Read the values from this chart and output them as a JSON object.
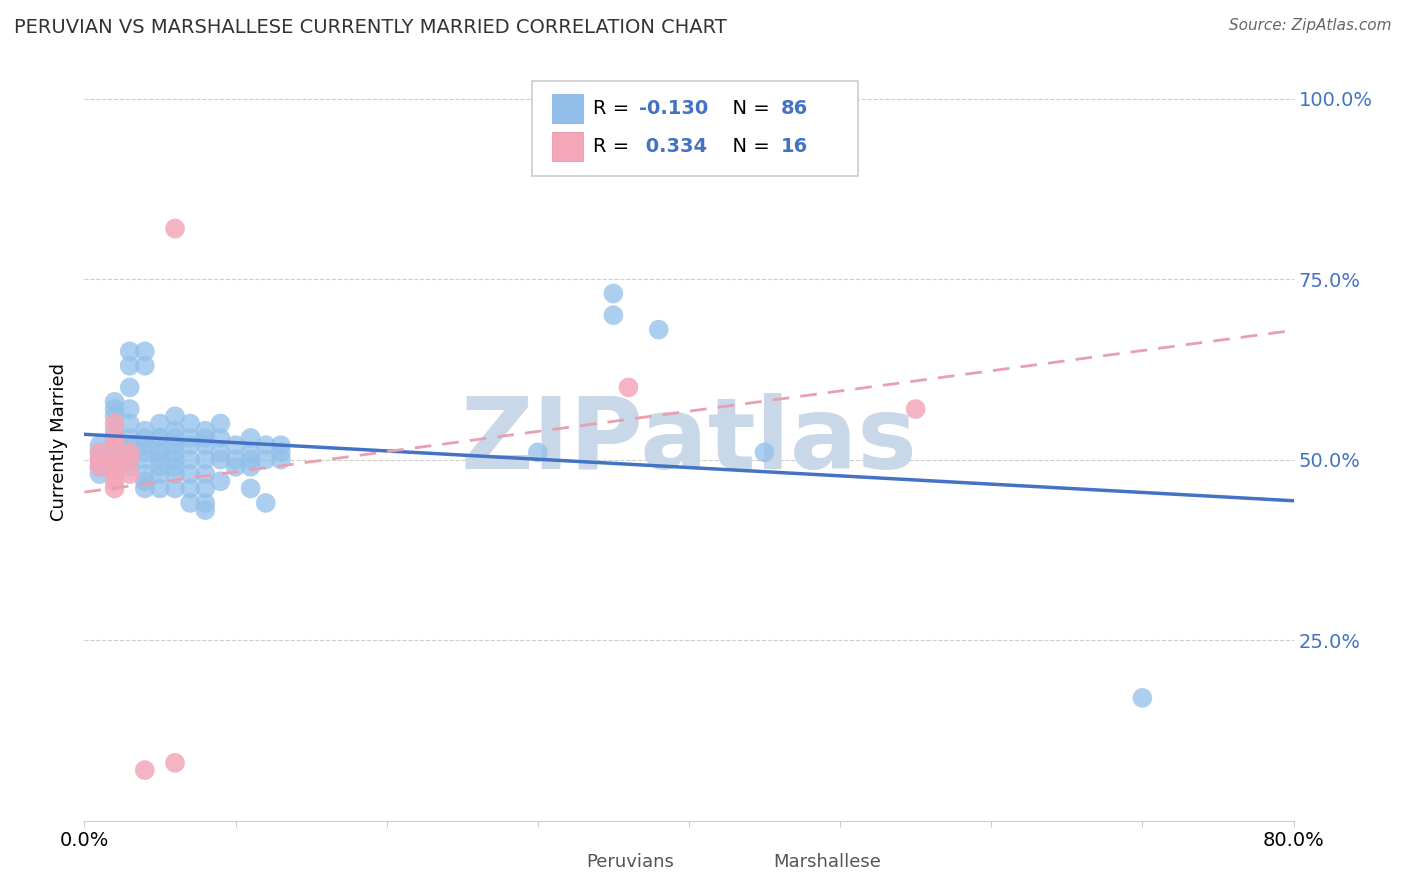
{
  "title": "PERUVIAN VS MARSHALLESE CURRENTLY MARRIED CORRELATION CHART",
  "source_text": "Source: ZipAtlas.com",
  "ylabel": "Currently Married",
  "xlim": [
    0.0,
    0.8
  ],
  "ylim": [
    0.0,
    1.05
  ],
  "yticks": [
    0.25,
    0.5,
    0.75,
    1.0
  ],
  "ytick_labels": [
    "25.0%",
    "50.0%",
    "75.0%",
    "100.0%"
  ],
  "xticks": [
    0.0,
    0.1,
    0.2,
    0.3,
    0.4,
    0.5,
    0.6,
    0.7,
    0.8
  ],
  "xtick_labels": [
    "0.0%",
    "",
    "",
    "",
    "",
    "",
    "",
    "",
    "80.0%"
  ],
  "peruvian_color": "#92bfea",
  "marshallese_color": "#f4a7b9",
  "peruvian_line_color": "#4472c4",
  "marshallese_line_color": "#e8a0b0",
  "legend_R_color": "#4472c4",
  "watermark": "ZIPatlas",
  "watermark_color": "#c8d8e8",
  "peru_trend": [
    -0.115,
    0.535
  ],
  "marsh_trend": [
    0.28,
    0.455
  ],
  "peruvian_dots": [
    [
      0.01,
      0.51
    ],
    [
      0.01,
      0.5
    ],
    [
      0.01,
      0.49
    ],
    [
      0.01,
      0.48
    ],
    [
      0.01,
      0.52
    ],
    [
      0.02,
      0.53
    ],
    [
      0.02,
      0.51
    ],
    [
      0.02,
      0.5
    ],
    [
      0.02,
      0.49
    ],
    [
      0.02,
      0.48
    ],
    [
      0.02,
      0.52
    ],
    [
      0.02,
      0.54
    ],
    [
      0.02,
      0.56
    ],
    [
      0.02,
      0.57
    ],
    [
      0.02,
      0.58
    ],
    [
      0.03,
      0.53
    ],
    [
      0.03,
      0.52
    ],
    [
      0.03,
      0.51
    ],
    [
      0.03,
      0.5
    ],
    [
      0.03,
      0.49
    ],
    [
      0.03,
      0.55
    ],
    [
      0.03,
      0.57
    ],
    [
      0.03,
      0.6
    ],
    [
      0.03,
      0.63
    ],
    [
      0.03,
      0.65
    ],
    [
      0.04,
      0.54
    ],
    [
      0.04,
      0.53
    ],
    [
      0.04,
      0.52
    ],
    [
      0.04,
      0.51
    ],
    [
      0.04,
      0.5
    ],
    [
      0.04,
      0.48
    ],
    [
      0.04,
      0.47
    ],
    [
      0.04,
      0.46
    ],
    [
      0.04,
      0.63
    ],
    [
      0.04,
      0.65
    ],
    [
      0.05,
      0.55
    ],
    [
      0.05,
      0.53
    ],
    [
      0.05,
      0.51
    ],
    [
      0.05,
      0.5
    ],
    [
      0.05,
      0.49
    ],
    [
      0.05,
      0.48
    ],
    [
      0.05,
      0.46
    ],
    [
      0.05,
      0.53
    ],
    [
      0.05,
      0.51
    ],
    [
      0.06,
      0.56
    ],
    [
      0.06,
      0.54
    ],
    [
      0.06,
      0.53
    ],
    [
      0.06,
      0.52
    ],
    [
      0.06,
      0.51
    ],
    [
      0.06,
      0.5
    ],
    [
      0.06,
      0.49
    ],
    [
      0.06,
      0.48
    ],
    [
      0.06,
      0.46
    ],
    [
      0.07,
      0.55
    ],
    [
      0.07,
      0.53
    ],
    [
      0.07,
      0.52
    ],
    [
      0.07,
      0.5
    ],
    [
      0.07,
      0.48
    ],
    [
      0.07,
      0.46
    ],
    [
      0.07,
      0.44
    ],
    [
      0.08,
      0.54
    ],
    [
      0.08,
      0.53
    ],
    [
      0.08,
      0.52
    ],
    [
      0.08,
      0.5
    ],
    [
      0.08,
      0.48
    ],
    [
      0.08,
      0.46
    ],
    [
      0.08,
      0.44
    ],
    [
      0.08,
      0.43
    ],
    [
      0.09,
      0.55
    ],
    [
      0.09,
      0.53
    ],
    [
      0.09,
      0.51
    ],
    [
      0.09,
      0.5
    ],
    [
      0.09,
      0.47
    ],
    [
      0.1,
      0.52
    ],
    [
      0.1,
      0.5
    ],
    [
      0.1,
      0.49
    ],
    [
      0.11,
      0.53
    ],
    [
      0.11,
      0.51
    ],
    [
      0.11,
      0.5
    ],
    [
      0.11,
      0.49
    ],
    [
      0.11,
      0.46
    ],
    [
      0.12,
      0.52
    ],
    [
      0.12,
      0.5
    ],
    [
      0.12,
      0.44
    ],
    [
      0.13,
      0.52
    ],
    [
      0.13,
      0.51
    ],
    [
      0.13,
      0.5
    ],
    [
      0.3,
      0.51
    ],
    [
      0.35,
      0.73
    ],
    [
      0.35,
      0.7
    ],
    [
      0.38,
      0.68
    ],
    [
      0.45,
      0.51
    ],
    [
      0.7,
      0.17
    ]
  ],
  "marshallese_dots": [
    [
      0.01,
      0.5
    ],
    [
      0.01,
      0.51
    ],
    [
      0.01,
      0.49
    ],
    [
      0.02,
      0.52
    ],
    [
      0.02,
      0.5
    ],
    [
      0.02,
      0.49
    ],
    [
      0.02,
      0.48
    ],
    [
      0.02,
      0.47
    ],
    [
      0.02,
      0.46
    ],
    [
      0.02,
      0.53
    ],
    [
      0.02,
      0.55
    ],
    [
      0.03,
      0.51
    ],
    [
      0.03,
      0.5
    ],
    [
      0.03,
      0.48
    ],
    [
      0.04,
      0.07
    ],
    [
      0.36,
      0.6
    ],
    [
      0.55,
      0.57
    ],
    [
      0.06,
      0.82
    ],
    [
      0.06,
      0.08
    ]
  ]
}
